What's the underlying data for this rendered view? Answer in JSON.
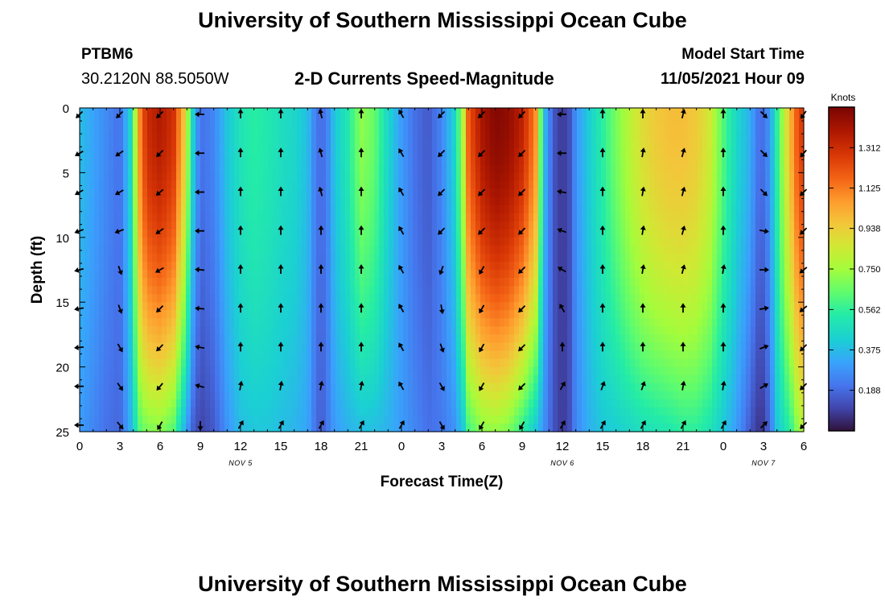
{
  "header": {
    "title": "University of Southern Mississippi Ocean Cube",
    "station_id": "PTBM6",
    "station_coords": "30.2120N  88.5050W",
    "plot_title": "2-D Currents Speed-Magnitude",
    "model_start_label": "Model Start Time",
    "model_start_value": "11/05/2021 Hour 09"
  },
  "footer": {
    "title": "University of Southern Mississippi Ocean Cube"
  },
  "chart_data": {
    "type": "heatmap",
    "title": "2-D Currents Speed-Magnitude",
    "xlabel": "Forecast Time(Z)",
    "ylabel": "Depth (ft)",
    "x_start_hour": 0,
    "x_end_hour": 54,
    "x_tick_labels": [
      "0",
      "3",
      "6",
      "9",
      "12",
      "15",
      "18",
      "21",
      "0",
      "3",
      "6",
      "9",
      "12",
      "15",
      "18",
      "21",
      "0",
      "3",
      "6"
    ],
    "date_labels": [
      {
        "hour": 12,
        "label": "NOV 5"
      },
      {
        "hour": 36,
        "label": "NOV 6"
      },
      {
        "hour": 51,
        "label": "NOV 7"
      }
    ],
    "y_range": [
      0,
      25
    ],
    "y_ticks": [
      0,
      5,
      10,
      15,
      20,
      25
    ],
    "colorbar": {
      "label": "Knots",
      "min": 0.0,
      "max": 1.5,
      "ticks": [
        "1.312",
        "1.125",
        "0.938",
        "0.750",
        "0.562",
        "0.375",
        "0.188"
      ],
      "tick_values": [
        1.312,
        1.125,
        0.938,
        0.75,
        0.562,
        0.375,
        0.188
      ]
    },
    "speed_profile": {
      "hours": [
        0,
        1,
        2,
        3,
        3.8,
        4.5,
        5,
        6,
        7,
        7.8,
        8.5,
        9,
        10,
        11,
        12,
        13,
        14,
        15,
        16,
        17,
        17.5,
        18,
        18.5,
        19,
        20,
        21,
        22,
        23,
        24,
        25,
        26,
        27,
        28,
        28.6,
        29,
        30,
        31,
        32,
        33,
        34,
        34.6,
        35,
        35.5,
        36,
        36.5,
        37,
        38,
        39,
        40,
        41,
        42,
        43,
        44,
        45,
        46,
        47,
        48,
        49,
        50,
        50.5,
        51,
        51.5,
        52,
        53,
        53.5,
        54
      ],
      "surface": [
        0.38,
        0.32,
        0.26,
        0.2,
        0.45,
        1.1,
        1.32,
        1.38,
        1.3,
        0.95,
        0.4,
        0.2,
        0.25,
        0.4,
        0.5,
        0.55,
        0.52,
        0.48,
        0.45,
        0.38,
        0.25,
        0.18,
        0.25,
        0.4,
        0.52,
        0.72,
        0.65,
        0.45,
        0.3,
        0.2,
        0.15,
        0.25,
        0.45,
        0.8,
        1.2,
        1.4,
        1.48,
        1.45,
        1.35,
        1.1,
        0.4,
        0.25,
        0.12,
        0.08,
        0.12,
        0.28,
        0.42,
        0.55,
        0.68,
        0.8,
        0.9,
        0.95,
        0.98,
        0.98,
        0.95,
        0.85,
        0.62,
        0.45,
        0.35,
        0.22,
        0.2,
        0.3,
        0.55,
        1.0,
        1.2,
        1.3
      ],
      "bottom": [
        0.3,
        0.25,
        0.2,
        0.18,
        0.35,
        0.62,
        0.68,
        0.7,
        0.62,
        0.35,
        0.15,
        0.1,
        0.15,
        0.28,
        0.38,
        0.4,
        0.4,
        0.38,
        0.36,
        0.32,
        0.22,
        0.15,
        0.22,
        0.3,
        0.35,
        0.38,
        0.38,
        0.35,
        0.3,
        0.25,
        0.2,
        0.22,
        0.28,
        0.4,
        0.6,
        0.7,
        0.72,
        0.68,
        0.55,
        0.4,
        0.28,
        0.2,
        0.12,
        0.08,
        0.12,
        0.25,
        0.35,
        0.4,
        0.42,
        0.45,
        0.48,
        0.5,
        0.52,
        0.55,
        0.55,
        0.5,
        0.4,
        0.3,
        0.15,
        0.08,
        0.08,
        0.2,
        0.4,
        0.55,
        0.7,
        0.8
      ]
    },
    "depth_shape_power": 1.8,
    "arrow_hours": [
      0,
      3,
      6,
      9,
      12,
      15,
      18,
      21,
      24,
      27,
      30,
      33,
      36,
      39,
      42,
      45,
      48,
      51,
      54
    ],
    "arrow_depths": [
      0,
      3,
      6,
      9,
      12,
      15,
      18,
      21,
      24
    ],
    "arrow_directions_deg": [
      [
        225,
        240,
        240,
        250,
        255,
        260,
        265,
        270,
        270
      ],
      [
        225,
        235,
        240,
        250,
        160,
        160,
        150,
        145,
        140
      ],
      [
        225,
        225,
        230,
        235,
        240,
        225,
        225,
        220,
        210
      ],
      [
        270,
        270,
        270,
        270,
        275,
        275,
        280,
        285,
        180
      ],
      [
        0,
        0,
        0,
        0,
        0,
        0,
        0,
        10,
        30
      ],
      [
        0,
        0,
        0,
        0,
        0,
        0,
        0,
        10,
        30
      ],
      [
        345,
        345,
        345,
        0,
        0,
        0,
        0,
        10,
        30
      ],
      [
        0,
        0,
        0,
        0,
        0,
        0,
        0,
        10,
        30
      ],
      [
        330,
        330,
        330,
        330,
        330,
        330,
        330,
        330,
        30
      ],
      [
        225,
        225,
        225,
        225,
        200,
        170,
        160,
        150,
        150
      ],
      [
        225,
        225,
        225,
        225,
        210,
        210,
        210,
        210,
        210
      ],
      [
        225,
        225,
        225,
        225,
        225,
        225,
        225,
        225,
        210
      ],
      [
        270,
        270,
        280,
        290,
        300,
        330,
        0,
        30,
        30
      ],
      [
        0,
        0,
        0,
        0,
        0,
        0,
        0,
        20,
        30
      ],
      [
        0,
        10,
        10,
        10,
        10,
        0,
        0,
        20,
        30
      ],
      [
        15,
        15,
        15,
        15,
        15,
        0,
        0,
        10,
        30
      ],
      [
        0,
        0,
        0,
        0,
        10,
        0,
        0,
        10,
        30
      ],
      [
        135,
        135,
        135,
        100,
        90,
        80,
        70,
        60,
        45
      ],
      [
        215,
        220,
        225,
        225,
        230,
        230,
        225,
        225,
        225
      ]
    ]
  }
}
